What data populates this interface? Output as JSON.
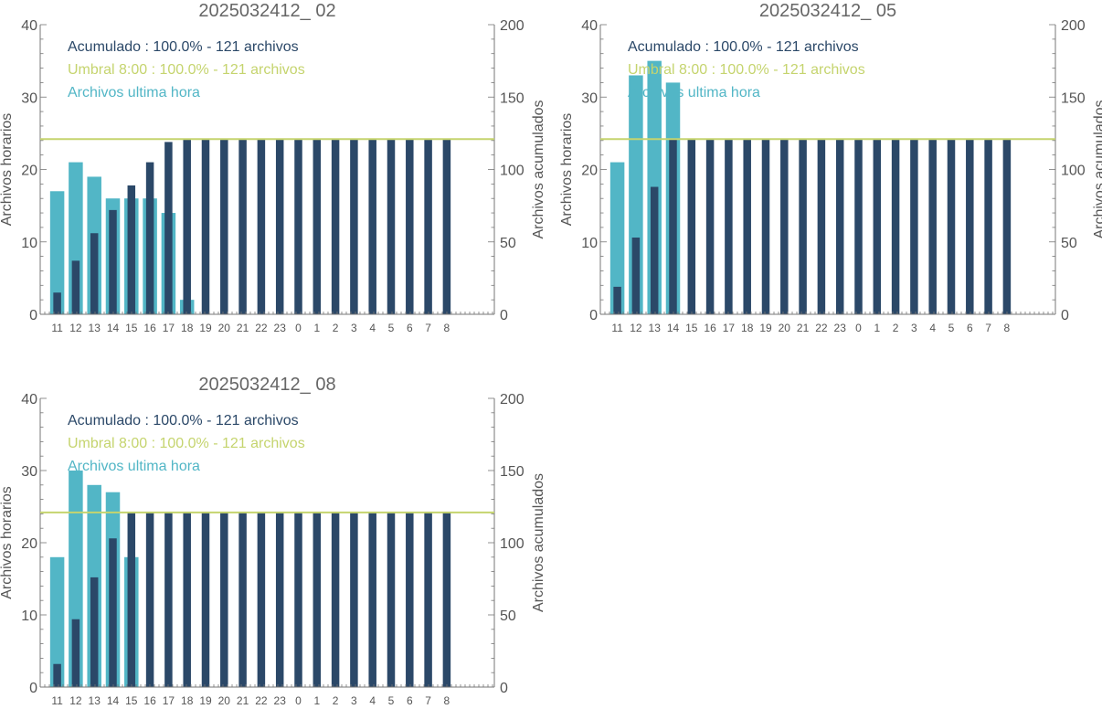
{
  "colors": {
    "hourly": "#52b6c6",
    "cumulative": "#2b4868",
    "threshold": "#c5d46e",
    "axis": "#777777",
    "tick_label": "#555555",
    "title": "#666666"
  },
  "chart_data": [
    {
      "type": "bar",
      "title": "2025032412_ 02",
      "ylabel_left": "Archivos horarios",
      "ylabel_right": "Archivos acumulados",
      "ylim_left": [
        0,
        40
      ],
      "ylim_right": [
        0,
        200
      ],
      "yticks_left": [
        "0",
        "10",
        "20",
        "30",
        "40"
      ],
      "yticks_right": [
        "0",
        "50",
        "100",
        "150",
        "200"
      ],
      "categories": [
        "11",
        "12",
        "13",
        "14",
        "15",
        "16",
        "17",
        "18",
        "19",
        "20",
        "21",
        "22",
        "23",
        "0",
        "1",
        "2",
        "3",
        "4",
        "5",
        "6",
        "7",
        "8"
      ],
      "legend": [
        {
          "text": "Acumulado : 100.0% - 121 archivos",
          "color": "#2b4868"
        },
        {
          "text": "Umbral 8:00 : 100.0% - 121 archivos",
          "color": "#c5d46e"
        },
        {
          "text": "Archivos ultima hora",
          "color": "#52b6c6"
        }
      ],
      "threshold_right": 121,
      "series": [
        {
          "name": "Archivos ultima hora",
          "axis": "left",
          "values": [
            17,
            21,
            19,
            16,
            16,
            16,
            14,
            2,
            0,
            0,
            0,
            0,
            0,
            0,
            0,
            0,
            0,
            0,
            0,
            0,
            0,
            0
          ]
        },
        {
          "name": "Acumulado",
          "axis": "right",
          "values": [
            15,
            37,
            56,
            72,
            89,
            105,
            119,
            121,
            121,
            121,
            121,
            121,
            121,
            121,
            121,
            121,
            121,
            121,
            121,
            121,
            121,
            121
          ]
        }
      ]
    },
    {
      "type": "bar",
      "title": "2025032412_ 05",
      "ylabel_left": "Archivos horarios",
      "ylabel_right": "Archivos acumulados",
      "ylim_left": [
        0,
        40
      ],
      "ylim_right": [
        0,
        200
      ],
      "yticks_left": [
        "0",
        "10",
        "20",
        "30",
        "40"
      ],
      "yticks_right": [
        "0",
        "50",
        "100",
        "150",
        "200"
      ],
      "categories": [
        "11",
        "12",
        "13",
        "14",
        "15",
        "16",
        "17",
        "18",
        "19",
        "20",
        "21",
        "22",
        "23",
        "0",
        "1",
        "2",
        "3",
        "4",
        "5",
        "6",
        "7",
        "8"
      ],
      "legend": [
        {
          "text": "Acumulado : 100.0% - 121 archivos",
          "color": "#2b4868"
        },
        {
          "text": "Umbral 8:00 : 100.0% - 121 archivos",
          "color": "#c5d46e"
        },
        {
          "text": "Archivos ultima hora",
          "color": "#52b6c6"
        }
      ],
      "threshold_right": 121,
      "series": [
        {
          "name": "Archivos ultima hora",
          "axis": "left",
          "values": [
            21,
            33,
            35,
            32,
            0,
            0,
            0,
            0,
            0,
            0,
            0,
            0,
            0,
            0,
            0,
            0,
            0,
            0,
            0,
            0,
            0,
            0
          ]
        },
        {
          "name": "Acumulado",
          "axis": "right",
          "values": [
            19,
            53,
            88,
            121,
            121,
            121,
            121,
            121,
            121,
            121,
            121,
            121,
            121,
            121,
            121,
            121,
            121,
            121,
            121,
            121,
            121,
            121
          ]
        }
      ]
    },
    {
      "type": "bar",
      "title": "2025032412_ 08",
      "ylabel_left": "Archivos horarios",
      "ylabel_right": "Archivos acumulados",
      "ylim_left": [
        0,
        40
      ],
      "ylim_right": [
        0,
        200
      ],
      "yticks_left": [
        "0",
        "10",
        "20",
        "30",
        "40"
      ],
      "yticks_right": [
        "0",
        "50",
        "100",
        "150",
        "200"
      ],
      "categories": [
        "11",
        "12",
        "13",
        "14",
        "15",
        "16",
        "17",
        "18",
        "19",
        "20",
        "21",
        "22",
        "23",
        "0",
        "1",
        "2",
        "3",
        "4",
        "5",
        "6",
        "7",
        "8"
      ],
      "legend": [
        {
          "text": "Acumulado : 100.0% - 121 archivos",
          "color": "#2b4868"
        },
        {
          "text": "Umbral 8:00 : 100.0% - 121 archivos",
          "color": "#c5d46e"
        },
        {
          "text": "Archivos ultima hora",
          "color": "#52b6c6"
        }
      ],
      "threshold_right": 121,
      "series": [
        {
          "name": "Archivos ultima hora",
          "axis": "left",
          "values": [
            18,
            30,
            28,
            27,
            18,
            0,
            0,
            0,
            0,
            0,
            0,
            0,
            0,
            0,
            0,
            0,
            0,
            0,
            0,
            0,
            0,
            0
          ]
        },
        {
          "name": "Acumulado",
          "axis": "right",
          "values": [
            16,
            47,
            76,
            103,
            121,
            121,
            121,
            121,
            121,
            121,
            121,
            121,
            121,
            121,
            121,
            121,
            121,
            121,
            121,
            121,
            121,
            121
          ]
        }
      ]
    }
  ]
}
